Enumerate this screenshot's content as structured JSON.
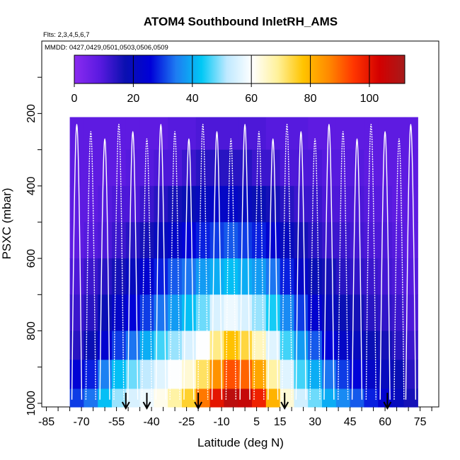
{
  "chart_data": {
    "type": "heatmap",
    "title": "ATOM4 Southbound InletRH_AMS",
    "subtitle": "Flts: 2,3,4,5,6,7",
    "annotation": "MMDD: 0427,0429,0501,0503,0506,0509",
    "xlabel": "Latitude (deg N)",
    "ylabel": "PSXC (mbar)",
    "xlim": [
      -87,
      83
    ],
    "ylim": [
      1010,
      0
    ],
    "x_ticks": [
      -85,
      -70,
      -55,
      -40,
      -25,
      -10,
      5,
      15,
      30,
      45,
      60,
      75
    ],
    "y_ticks": [
      200,
      400,
      600,
      800,
      1000
    ],
    "colorbar": {
      "min": 0,
      "max": 112,
      "ticks": [
        0,
        20,
        40,
        60,
        80,
        100
      ],
      "colors": [
        "#8B2BF0",
        "#5A1AE0",
        "#0A10B0",
        "#0000D8",
        "#1E7CF2",
        "#00C8F5",
        "#BFE9FF",
        "#FFFFFF",
        "#FFF19A",
        "#FFC400",
        "#FF8A00",
        "#FF3500",
        "#D30000",
        "#A61B1B"
      ]
    },
    "arrows_latitude": [
      -51,
      -42,
      -20,
      17,
      61
    ],
    "series": [
      {
        "name": "RH column",
        "lat": -72,
        "rh": [
          8,
          8,
          8,
          8,
          8,
          10,
          12,
          14,
          25,
          30
        ]
      },
      {
        "name": "RH column",
        "lat": -66,
        "rh": [
          8,
          8,
          8,
          8,
          9,
          12,
          14,
          18,
          28,
          34
        ]
      },
      {
        "name": "RH column",
        "lat": -60,
        "rh": [
          8,
          8,
          8,
          9,
          10,
          14,
          18,
          24,
          35,
          42
        ]
      },
      {
        "name": "RH column",
        "lat": -54,
        "rh": [
          8,
          8,
          8,
          10,
          12,
          16,
          22,
          30,
          42,
          50
        ]
      },
      {
        "name": "RH column",
        "lat": -48,
        "rh": [
          8,
          8,
          9,
          10,
          14,
          20,
          26,
          34,
          48,
          55
        ]
      },
      {
        "name": "RH column",
        "lat": -42,
        "rh": [
          8,
          8,
          9,
          12,
          16,
          24,
          30,
          40,
          52,
          58
        ]
      },
      {
        "name": "RH column",
        "lat": -36,
        "rh": [
          8,
          8,
          10,
          14,
          20,
          28,
          34,
          46,
          56,
          62
        ]
      },
      {
        "name": "RH column",
        "lat": -30,
        "rh": [
          8,
          9,
          10,
          16,
          22,
          32,
          38,
          50,
          60,
          68
        ]
      },
      {
        "name": "RH column",
        "lat": -24,
        "rh": [
          8,
          9,
          12,
          18,
          26,
          34,
          42,
          55,
          64,
          75
        ]
      },
      {
        "name": "RH column",
        "lat": -18,
        "rh": [
          8,
          10,
          14,
          20,
          28,
          38,
          48,
          60,
          72,
          88
        ]
      },
      {
        "name": "RH column",
        "lat": -12,
        "rh": [
          8,
          10,
          14,
          22,
          30,
          40,
          55,
          70,
          85,
          100
        ]
      },
      {
        "name": "RH column",
        "lat": -6,
        "rh": [
          8,
          10,
          14,
          22,
          32,
          42,
          58,
          78,
          92,
          108
        ]
      },
      {
        "name": "RH column",
        "lat": 0,
        "rh": [
          8,
          10,
          14,
          20,
          30,
          40,
          55,
          74,
          90,
          106
        ]
      },
      {
        "name": "RH column",
        "lat": 6,
        "rh": [
          8,
          10,
          12,
          18,
          28,
          38,
          50,
          66,
          82,
          98
        ]
      },
      {
        "name": "RH column",
        "lat": 12,
        "rh": [
          8,
          9,
          12,
          16,
          24,
          34,
          44,
          56,
          68,
          80
        ]
      },
      {
        "name": "RH column",
        "lat": 18,
        "rh": [
          8,
          9,
          10,
          14,
          20,
          28,
          36,
          46,
          56,
          64
        ]
      },
      {
        "name": "RH column",
        "lat": 24,
        "rh": [
          8,
          9,
          10,
          12,
          16,
          22,
          30,
          38,
          46,
          54
        ]
      },
      {
        "name": "RH column",
        "lat": 30,
        "rh": [
          8,
          8,
          10,
          12,
          14,
          18,
          24,
          32,
          40,
          48
        ]
      },
      {
        "name": "RH column",
        "lat": 36,
        "rh": [
          8,
          8,
          9,
          10,
          12,
          16,
          20,
          26,
          34,
          40
        ]
      },
      {
        "name": "RH column",
        "lat": 42,
        "rh": [
          8,
          8,
          9,
          10,
          12,
          14,
          18,
          22,
          30,
          36
        ]
      },
      {
        "name": "RH column",
        "lat": 48,
        "rh": [
          8,
          8,
          9,
          10,
          11,
          13,
          16,
          20,
          26,
          32
        ]
      },
      {
        "name": "RH column",
        "lat": 54,
        "rh": [
          8,
          8,
          8,
          9,
          10,
          12,
          14,
          18,
          22,
          28
        ]
      },
      {
        "name": "RH column",
        "lat": 60,
        "rh": [
          8,
          8,
          8,
          9,
          10,
          11,
          13,
          16,
          20,
          24
        ]
      },
      {
        "name": "RH column",
        "lat": 66,
        "rh": [
          8,
          8,
          8,
          8,
          9,
          10,
          12,
          14,
          18,
          20
        ]
      },
      {
        "name": "RH column",
        "lat": 71,
        "rh": [
          8,
          8,
          8,
          8,
          8,
          9,
          10,
          12,
          14,
          16
        ]
      }
    ]
  }
}
